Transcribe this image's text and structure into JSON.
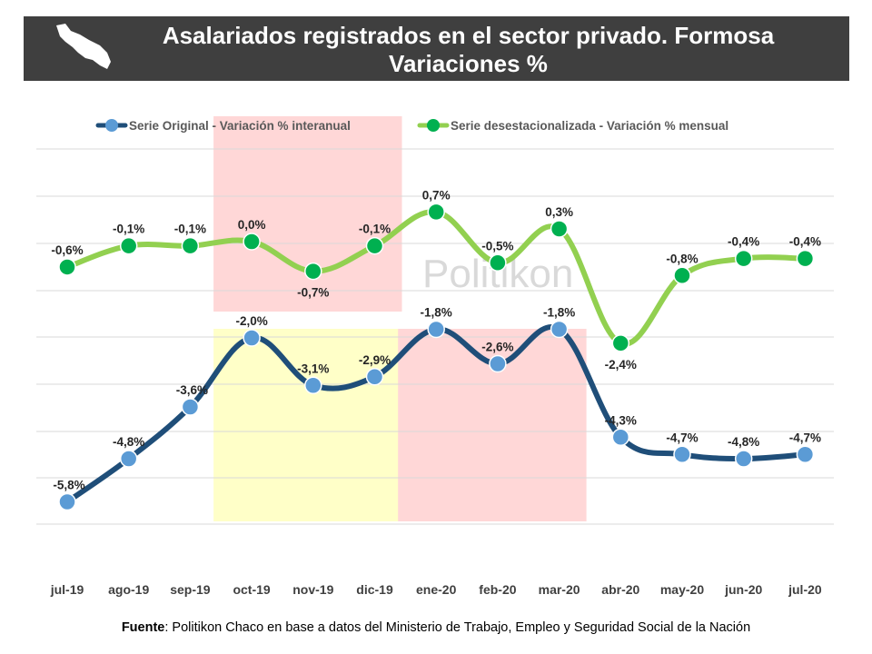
{
  "header": {
    "title_line1": "Asalariados registrados en el sector privado.  Formosa",
    "title_line2": "Variaciones %",
    "logo_icon": "formosa-map-icon"
  },
  "watermark": "Politikon",
  "footer": {
    "label": "Fuente",
    "text": ": Politikon Chaco en base a datos del Ministerio de Trabajo, Empleo y Seguridad Social de la Nación"
  },
  "colors": {
    "original": "#1f4e79",
    "original_marker": "#5b9bd5",
    "desest": "#92d050",
    "desest_marker": "#00b050",
    "shade_red": "#ffd7d7",
    "shade_yellow": "#ffffc8",
    "grid": "#d9d9d9"
  },
  "chart_data": {
    "type": "line",
    "categories": [
      "jul-19",
      "ago-19",
      "sep-19",
      "oct-19",
      "nov-19",
      "dic-19",
      "ene-20",
      "feb-20",
      "mar-20",
      "abr-20",
      "may-20",
      "jun-20",
      "jul-20"
    ],
    "series": [
      {
        "name": "Serie Original - Variación % interanual",
        "values": [
          -5.8,
          -4.8,
          -3.6,
          -2.0,
          -3.1,
          -2.9,
          -1.8,
          -2.6,
          -1.8,
          -4.3,
          -4.7,
          -4.8,
          -4.7
        ],
        "labels": [
          "-5,8%",
          "-4,8%",
          "-3,6%",
          "-2,0%",
          "-3,1%",
          "-2,9%",
          "-1,8%",
          "-2,6%",
          "-1,8%",
          "-4,3%",
          "-4,7%",
          "-4,8%",
          "-4,7%"
        ]
      },
      {
        "name": "Serie desestacionalizada - Variación % mensual",
        "values": [
          -0.6,
          -0.1,
          -0.1,
          0.0,
          -0.7,
          -0.1,
          0.7,
          -0.5,
          0.3,
          -2.4,
          -0.8,
          -0.4,
          -0.4
        ],
        "labels": [
          "-0,6%",
          "-0,1%",
          "-0,1%",
          "0,0%",
          "-0,7%",
          "-0,1%",
          "0,7%",
          "-0,5%",
          "0,3%",
          "-2,4%",
          "-0,8%",
          "-0,4%",
          "-0,4%"
        ]
      }
    ],
    "shaded_periods": [
      {
        "series": "desest",
        "from": "oct-19",
        "to": "dic-19",
        "color": "red"
      },
      {
        "series": "original",
        "from": "oct-19",
        "to": "dic-19",
        "color": "yellow"
      },
      {
        "series": "original",
        "from": "ene-20",
        "to": "mar-20",
        "color": "red"
      }
    ],
    "legend_position": "top",
    "grid": true
  }
}
